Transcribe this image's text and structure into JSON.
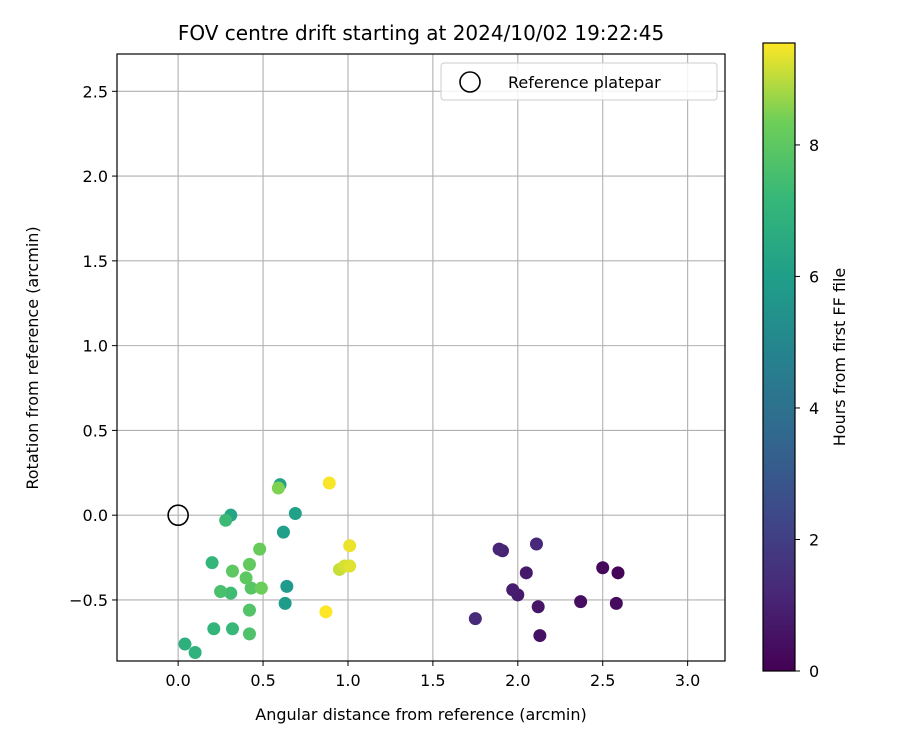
{
  "chart_data": {
    "type": "scatter",
    "title": "FOV centre drift starting at 2024/10/02 19:22:45",
    "xlabel": "Angular distance from reference (arcmin)",
    "ylabel": "Rotation from reference (arcmin)",
    "xlim": [
      -0.36,
      3.22
    ],
    "ylim": [
      -0.86,
      2.72
    ],
    "xticks": [
      0.0,
      0.5,
      1.0,
      1.5,
      2.0,
      2.5,
      3.0
    ],
    "xtick_labels": [
      "0.0",
      "0.5",
      "1.0",
      "1.5",
      "2.0",
      "2.5",
      "3.0"
    ],
    "yticks": [
      -0.5,
      0.0,
      0.5,
      1.0,
      1.5,
      2.0,
      2.5
    ],
    "ytick_labels": [
      "−0.5",
      "0.0",
      "0.5",
      "1.0",
      "1.5",
      "2.0",
      "2.5"
    ],
    "grid": true,
    "legend": {
      "position": "upper-right",
      "entries": [
        "Reference platepar"
      ]
    },
    "reference_point": {
      "x": 0.0,
      "y": 0.0
    },
    "colorbar": {
      "label": "Hours from first FF file",
      "min": 0,
      "max": 9.55,
      "colormap": "viridis",
      "ticks": [
        0,
        2,
        4,
        6,
        8
      ],
      "tick_labels": [
        "0",
        "2",
        "4",
        "6",
        "8"
      ]
    },
    "points": [
      {
        "x": 2.59,
        "y": -0.34,
        "c": 0.1
      },
      {
        "x": 2.5,
        "y": -0.31,
        "c": 0.2
      },
      {
        "x": 2.58,
        "y": -0.52,
        "c": 0.3
      },
      {
        "x": 2.37,
        "y": -0.51,
        "c": 0.4
      },
      {
        "x": 2.13,
        "y": -0.71,
        "c": 0.5
      },
      {
        "x": 2.12,
        "y": -0.54,
        "c": 0.6
      },
      {
        "x": 2.05,
        "y": -0.34,
        "c": 0.7
      },
      {
        "x": 2.0,
        "y": -0.47,
        "c": 0.8
      },
      {
        "x": 1.97,
        "y": -0.44,
        "c": 0.9
      },
      {
        "x": 1.91,
        "y": -0.21,
        "c": 1.0
      },
      {
        "x": 1.89,
        "y": -0.2,
        "c": 1.1
      },
      {
        "x": 2.11,
        "y": -0.17,
        "c": 1.2
      },
      {
        "x": 1.75,
        "y": -0.61,
        "c": 1.3
      },
      {
        "x": 0.64,
        "y": -0.42,
        "c": 5.8
      },
      {
        "x": 0.63,
        "y": -0.52,
        "c": 5.9
      },
      {
        "x": 0.62,
        "y": -0.1,
        "c": 6.0
      },
      {
        "x": 0.69,
        "y": 0.01,
        "c": 6.1
      },
      {
        "x": 0.6,
        "y": 0.18,
        "c": 6.2
      },
      {
        "x": 0.31,
        "y": 0.0,
        "c": 6.3
      },
      {
        "x": 0.04,
        "y": -0.76,
        "c": 6.8
      },
      {
        "x": 0.1,
        "y": -0.81,
        "c": 6.9
      },
      {
        "x": 0.21,
        "y": -0.67,
        "c": 7.0
      },
      {
        "x": 0.2,
        "y": -0.28,
        "c": 7.1
      },
      {
        "x": 0.32,
        "y": -0.67,
        "c": 7.2
      },
      {
        "x": 0.28,
        "y": -0.03,
        "c": 7.3
      },
      {
        "x": 0.31,
        "y": -0.46,
        "c": 7.4
      },
      {
        "x": 0.25,
        "y": -0.45,
        "c": 7.6
      },
      {
        "x": 0.42,
        "y": -0.7,
        "c": 7.7
      },
      {
        "x": 0.42,
        "y": -0.56,
        "c": 7.8
      },
      {
        "x": 0.43,
        "y": -0.43,
        "c": 7.9
      },
      {
        "x": 0.32,
        "y": -0.33,
        "c": 8.0
      },
      {
        "x": 0.4,
        "y": -0.37,
        "c": 8.0
      },
      {
        "x": 0.42,
        "y": -0.29,
        "c": 8.1
      },
      {
        "x": 0.48,
        "y": -0.2,
        "c": 8.2
      },
      {
        "x": 0.49,
        "y": -0.43,
        "c": 8.3
      },
      {
        "x": 0.59,
        "y": 0.16,
        "c": 8.5
      },
      {
        "x": 0.95,
        "y": -0.32,
        "c": 9.1
      },
      {
        "x": 0.98,
        "y": -0.3,
        "c": 9.2
      },
      {
        "x": 1.01,
        "y": -0.3,
        "c": 9.3
      },
      {
        "x": 1.01,
        "y": -0.18,
        "c": 9.4
      },
      {
        "x": 0.89,
        "y": 0.19,
        "c": 9.5
      },
      {
        "x": 0.87,
        "y": -0.57,
        "c": 9.55
      }
    ]
  }
}
